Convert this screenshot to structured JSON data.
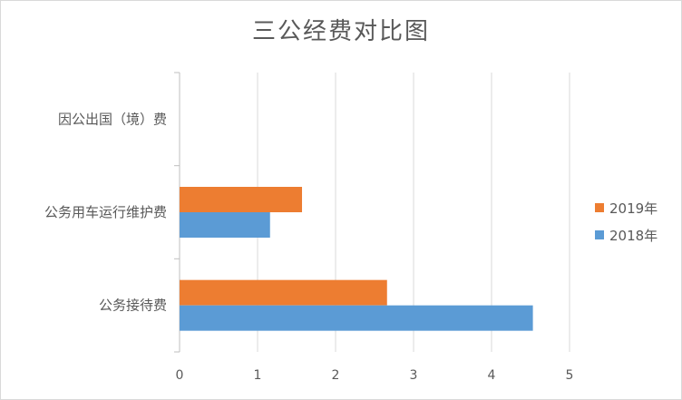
{
  "chart_data": {
    "type": "bar",
    "orientation": "horizontal",
    "title": "三公经费对比图",
    "categories": [
      "公务接待费",
      "公务用车运行维护费",
      "因公出国（境）费"
    ],
    "series": [
      {
        "name": "2019年",
        "color": "#ed7d31",
        "values": [
          2.66,
          1.57,
          0
        ]
      },
      {
        "name": "2018年",
        "color": "#5b9bd5",
        "values": [
          4.53,
          1.16,
          0
        ]
      }
    ],
    "xlim": [
      0,
      5
    ],
    "xticks": [
      "0",
      "1",
      "2",
      "3",
      "4",
      "5"
    ],
    "grid": "vertical",
    "legend": "right"
  }
}
